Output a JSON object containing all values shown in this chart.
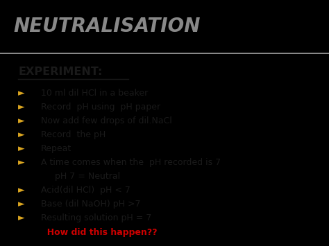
{
  "bg_top": "#111111",
  "bg_bottom": "#ffffff",
  "title": "NEUTRALISATION",
  "title_color": "#888888",
  "title_font_size": 20,
  "title_bar_height": 0.215,
  "header": "EXPERIMENT:",
  "header_font_size": 11.5,
  "bullet_color": "#DAA520",
  "bullet_char": "►",
  "text_color": "#1a1a1a",
  "font_size": 9.0,
  "lines": [
    {
      "text": "10 ml dil HCl in a beaker",
      "no_bullet": false,
      "color": "#1a1a1a",
      "bold": false
    },
    {
      "text": "Record  pH using  pH paper",
      "no_bullet": false,
      "color": "#1a1a1a",
      "bold": false
    },
    {
      "text": "Now add few drops of dil.NaCl",
      "no_bullet": false,
      "color": "#1a1a1a",
      "bold": false
    },
    {
      "text": "Record  the pH",
      "no_bullet": false,
      "color": "#1a1a1a",
      "bold": false
    },
    {
      "text": "Repeat",
      "no_bullet": false,
      "color": "#1a1a1a",
      "bold": false
    },
    {
      "text": "A time comes when the  pH recorded is 7",
      "no_bullet": false,
      "color": "#1a1a1a",
      "bold": false
    },
    {
      "text": "     pH 7 = Neutral",
      "no_bullet": true,
      "color": "#1a1a1a",
      "bold": false
    },
    {
      "text": "Acid(dil HCl)  pH < 7",
      "no_bullet": false,
      "color": "#1a1a1a",
      "bold": false
    },
    {
      "text": "Base (dil NaOH) pH >7",
      "no_bullet": false,
      "color": "#1a1a1a",
      "bold": false
    },
    {
      "text": "Resulting solution pH = 7",
      "no_bullet": false,
      "color": "#1a1a1a",
      "bold": false
    },
    {
      "text": "  How did this happen??",
      "no_bullet": true,
      "color": "#cc0000",
      "bold": true
    }
  ]
}
